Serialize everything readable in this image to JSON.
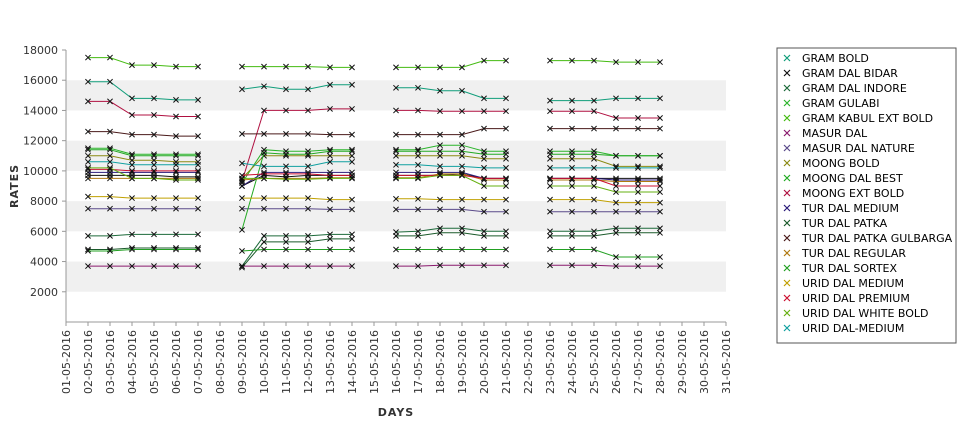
{
  "chart_data": {
    "type": "line",
    "xlabel": "DAYS",
    "ylabel": "RATES",
    "ylim": [
      0,
      18000
    ],
    "yticks": [
      2000,
      4000,
      6000,
      8000,
      10000,
      12000,
      14000,
      16000,
      18000
    ],
    "legend_position": "right",
    "x": [
      "01-05-2016",
      "02-05-2016",
      "03-05-2016",
      "04-05-2016",
      "05-05-2016",
      "06-05-2016",
      "07-05-2016",
      "08-05-2016",
      "09-05-2016",
      "10-05-2016",
      "11-05-2016",
      "12-05-2016",
      "13-05-2016",
      "14-05-2016",
      "15-05-2016",
      "16-05-2016",
      "17-05-2016",
      "18-05-2016",
      "19-05-2016",
      "20-05-2016",
      "21-05-2016",
      "22-05-2016",
      "23-05-2016",
      "24-05-2016",
      "25-05-2016",
      "26-05-2016",
      "27-05-2016",
      "28-05-2016",
      "29-05-2016",
      "30-05-2016",
      "31-05-2016"
    ],
    "series": [
      {
        "name": "GRAM BOLD",
        "color": "#0f9d7a",
        "values": [
          null,
          15900,
          15900,
          14800,
          14800,
          14700,
          14700,
          null,
          15400,
          15600,
          15400,
          15400,
          15700,
          15700,
          null,
          15500,
          15500,
          15300,
          15300,
          14800,
          14800,
          null,
          14650,
          14650,
          14650,
          14800,
          14800,
          14800,
          null,
          null,
          null
        ]
      },
      {
        "name": "GRAM DAL BIDAR",
        "color": "#111111",
        "values": [
          null,
          9700,
          9700,
          9700,
          9700,
          9600,
          9600,
          null,
          9000,
          9700,
          9600,
          9700,
          9700,
          9700,
          null,
          9700,
          9700,
          9700,
          9800,
          9500,
          9500,
          null,
          9500,
          9500,
          9500,
          9500,
          9500,
          9500,
          null,
          null,
          null
        ]
      },
      {
        "name": "GRAM DAL INDORE",
        "color": "#1d6a3a",
        "values": [
          null,
          5700,
          5700,
          5800,
          5800,
          5800,
          5800,
          null,
          3700,
          5700,
          5700,
          5700,
          5800,
          5800,
          null,
          5950,
          6000,
          6200,
          6200,
          6000,
          6000,
          null,
          6000,
          6000,
          6000,
          6200,
          6200,
          6200,
          null,
          null,
          null
        ]
      },
      {
        "name": "GRAM GULABI",
        "color": "#2bb52b",
        "values": [
          null,
          11500,
          11500,
          11100,
          11100,
          11100,
          11100,
          null,
          9200,
          11400,
          11300,
          11300,
          11400,
          11400,
          null,
          11400,
          11400,
          11700,
          11700,
          11300,
          11300,
          null,
          11300,
          11300,
          11300,
          11000,
          11000,
          11000,
          null,
          null,
          null
        ]
      },
      {
        "name": "GRAM KABUL EXT BOLD",
        "color": "#44bb11",
        "values": [
          null,
          17500,
          17500,
          17000,
          17000,
          16900,
          16900,
          null,
          16900,
          16900,
          16900,
          16900,
          16850,
          16850,
          null,
          16850,
          16850,
          16850,
          16850,
          17300,
          17300,
          null,
          17300,
          17300,
          17300,
          17200,
          17200,
          17200,
          null,
          null,
          null
        ]
      },
      {
        "name": "MASUR DAL",
        "color": "#8a1a6e",
        "values": [
          null,
          3700,
          3700,
          3700,
          3700,
          3700,
          3700,
          null,
          3700,
          3700,
          3700,
          3700,
          3700,
          3700,
          null,
          3700,
          3700,
          3750,
          3750,
          3750,
          3750,
          null,
          3750,
          3750,
          3750,
          3700,
          3700,
          3700,
          null,
          null,
          null
        ]
      },
      {
        "name": "MASUR DAL NATURE",
        "color": "#5a4a8a",
        "values": [
          null,
          7500,
          7500,
          7500,
          7500,
          7500,
          7500,
          null,
          7500,
          7500,
          7500,
          7500,
          7450,
          7450,
          null,
          7450,
          7450,
          7450,
          7450,
          7300,
          7300,
          null,
          7300,
          7300,
          7300,
          7300,
          7300,
          7300,
          null,
          null,
          null
        ]
      },
      {
        "name": "MOONG BOLD",
        "color": "#8a8a12",
        "values": [
          null,
          11000,
          11000,
          10700,
          10700,
          10600,
          10600,
          null,
          9500,
          11000,
          11000,
          11000,
          11000,
          11000,
          null,
          11000,
          11000,
          11000,
          11000,
          10800,
          10800,
          null,
          10800,
          10800,
          10800,
          10300,
          10300,
          10300,
          null,
          null,
          null
        ]
      },
      {
        "name": "MOONG DAL BEST",
        "color": "#22aa22",
        "values": [
          null,
          11400,
          11400,
          11000,
          11000,
          11000,
          11000,
          null,
          6100,
          11200,
          11100,
          11100,
          11300,
          11300,
          null,
          11300,
          11300,
          11300,
          11300,
          11100,
          11100,
          null,
          11100,
          11100,
          11100,
          11000,
          11000,
          11000,
          null,
          null,
          null
        ]
      },
      {
        "name": "MOONG EXT BOLD",
        "color": "#b01040",
        "values": [
          null,
          14600,
          14600,
          13700,
          13700,
          13600,
          13600,
          null,
          9300,
          14000,
          14000,
          14000,
          14100,
          14100,
          null,
          14000,
          14000,
          13950,
          13950,
          13950,
          13950,
          null,
          13950,
          13950,
          13950,
          13500,
          13500,
          13500,
          null,
          null,
          null
        ]
      },
      {
        "name": "TUR DAL MEDIUM",
        "color": "#2a1a7a",
        "values": [
          null,
          9900,
          9900,
          9900,
          9900,
          9900,
          9900,
          null,
          9000,
          9900,
          9900,
          9900,
          9900,
          9900,
          null,
          9900,
          9900,
          9900,
          9900,
          9500,
          9500,
          null,
          9500,
          9500,
          9500,
          9400,
          9400,
          9400,
          null,
          null,
          null
        ]
      },
      {
        "name": "TUR DAL PATKA",
        "color": "#1a5a2a",
        "values": [
          null,
          4800,
          4800,
          4900,
          4900,
          4900,
          4900,
          null,
          3600,
          5300,
          5300,
          5300,
          5500,
          5500,
          null,
          5700,
          5700,
          5900,
          5900,
          5700,
          5700,
          null,
          5700,
          5700,
          5700,
          5900,
          5900,
          5900,
          null,
          null,
          null
        ]
      },
      {
        "name": "TUR DAL PATKA GULBARGA",
        "color": "#4a1a1a",
        "values": [
          null,
          12600,
          12600,
          12400,
          12400,
          12300,
          12300,
          null,
          12450,
          12450,
          12450,
          12450,
          12400,
          12400,
          null,
          12400,
          12400,
          12400,
          12400,
          12800,
          12800,
          null,
          12800,
          12800,
          12800,
          12800,
          12800,
          12800,
          null,
          null,
          null
        ]
      },
      {
        "name": "TUR DAL REGULAR",
        "color": "#b07a10",
        "values": [
          null,
          9500,
          9500,
          9500,
          9500,
          9500,
          9500,
          null,
          9400,
          9500,
          9500,
          9500,
          9550,
          9550,
          null,
          9550,
          9550,
          9800,
          9800,
          9400,
          9400,
          null,
          9400,
          9400,
          9400,
          9300,
          9300,
          9300,
          null,
          null,
          null
        ]
      },
      {
        "name": "TUR DAL SORTEX",
        "color": "#22a022",
        "values": [
          null,
          4700,
          4700,
          4800,
          4800,
          4800,
          4800,
          null,
          4700,
          4800,
          4800,
          4800,
          4800,
          4800,
          null,
          4800,
          4800,
          4800,
          4800,
          4800,
          4800,
          null,
          4800,
          4800,
          4800,
          4300,
          4300,
          4300,
          null,
          null,
          null
        ]
      },
      {
        "name": "URID DAL MEDIUM",
        "color": "#c0a000",
        "values": [
          null,
          8300,
          8300,
          8200,
          8200,
          8200,
          8200,
          null,
          8200,
          8200,
          8200,
          8200,
          8100,
          8100,
          null,
          8150,
          8150,
          8100,
          8100,
          8100,
          8100,
          null,
          8100,
          8100,
          8100,
          7900,
          7900,
          7900,
          null,
          null,
          null
        ]
      },
      {
        "name": "URID DAL PREMIUM",
        "color": "#cc1030",
        "values": [
          null,
          10100,
          10100,
          10000,
          10000,
          10000,
          10000,
          null,
          9700,
          9800,
          9800,
          9800,
          9700,
          9700,
          null,
          9700,
          9700,
          9700,
          9700,
          9500,
          9500,
          null,
          9500,
          9500,
          9500,
          9000,
          9000,
          9000,
          null,
          null,
          null
        ]
      },
      {
        "name": "URID DAL WHITE BOLD",
        "color": "#66b010",
        "values": [
          null,
          10200,
          10200,
          9500,
          9500,
          9400,
          9400,
          null,
          9500,
          9500,
          9450,
          9450,
          9500,
          9500,
          null,
          9500,
          9500,
          9700,
          9700,
          9000,
          9000,
          null,
          9000,
          9000,
          9000,
          8600,
          8600,
          8600,
          null,
          null,
          null
        ]
      },
      {
        "name": "URID DAL-MEDIUM",
        "color": "#10a0a0",
        "values": [
          null,
          10600,
          10600,
          10400,
          10400,
          10400,
          10400,
          null,
          10500,
          10300,
          10300,
          10300,
          10600,
          10600,
          null,
          10400,
          10400,
          10300,
          10300,
          10200,
          10200,
          null,
          10200,
          10200,
          10200,
          10200,
          10200,
          10200,
          null,
          null,
          null
        ]
      }
    ]
  }
}
